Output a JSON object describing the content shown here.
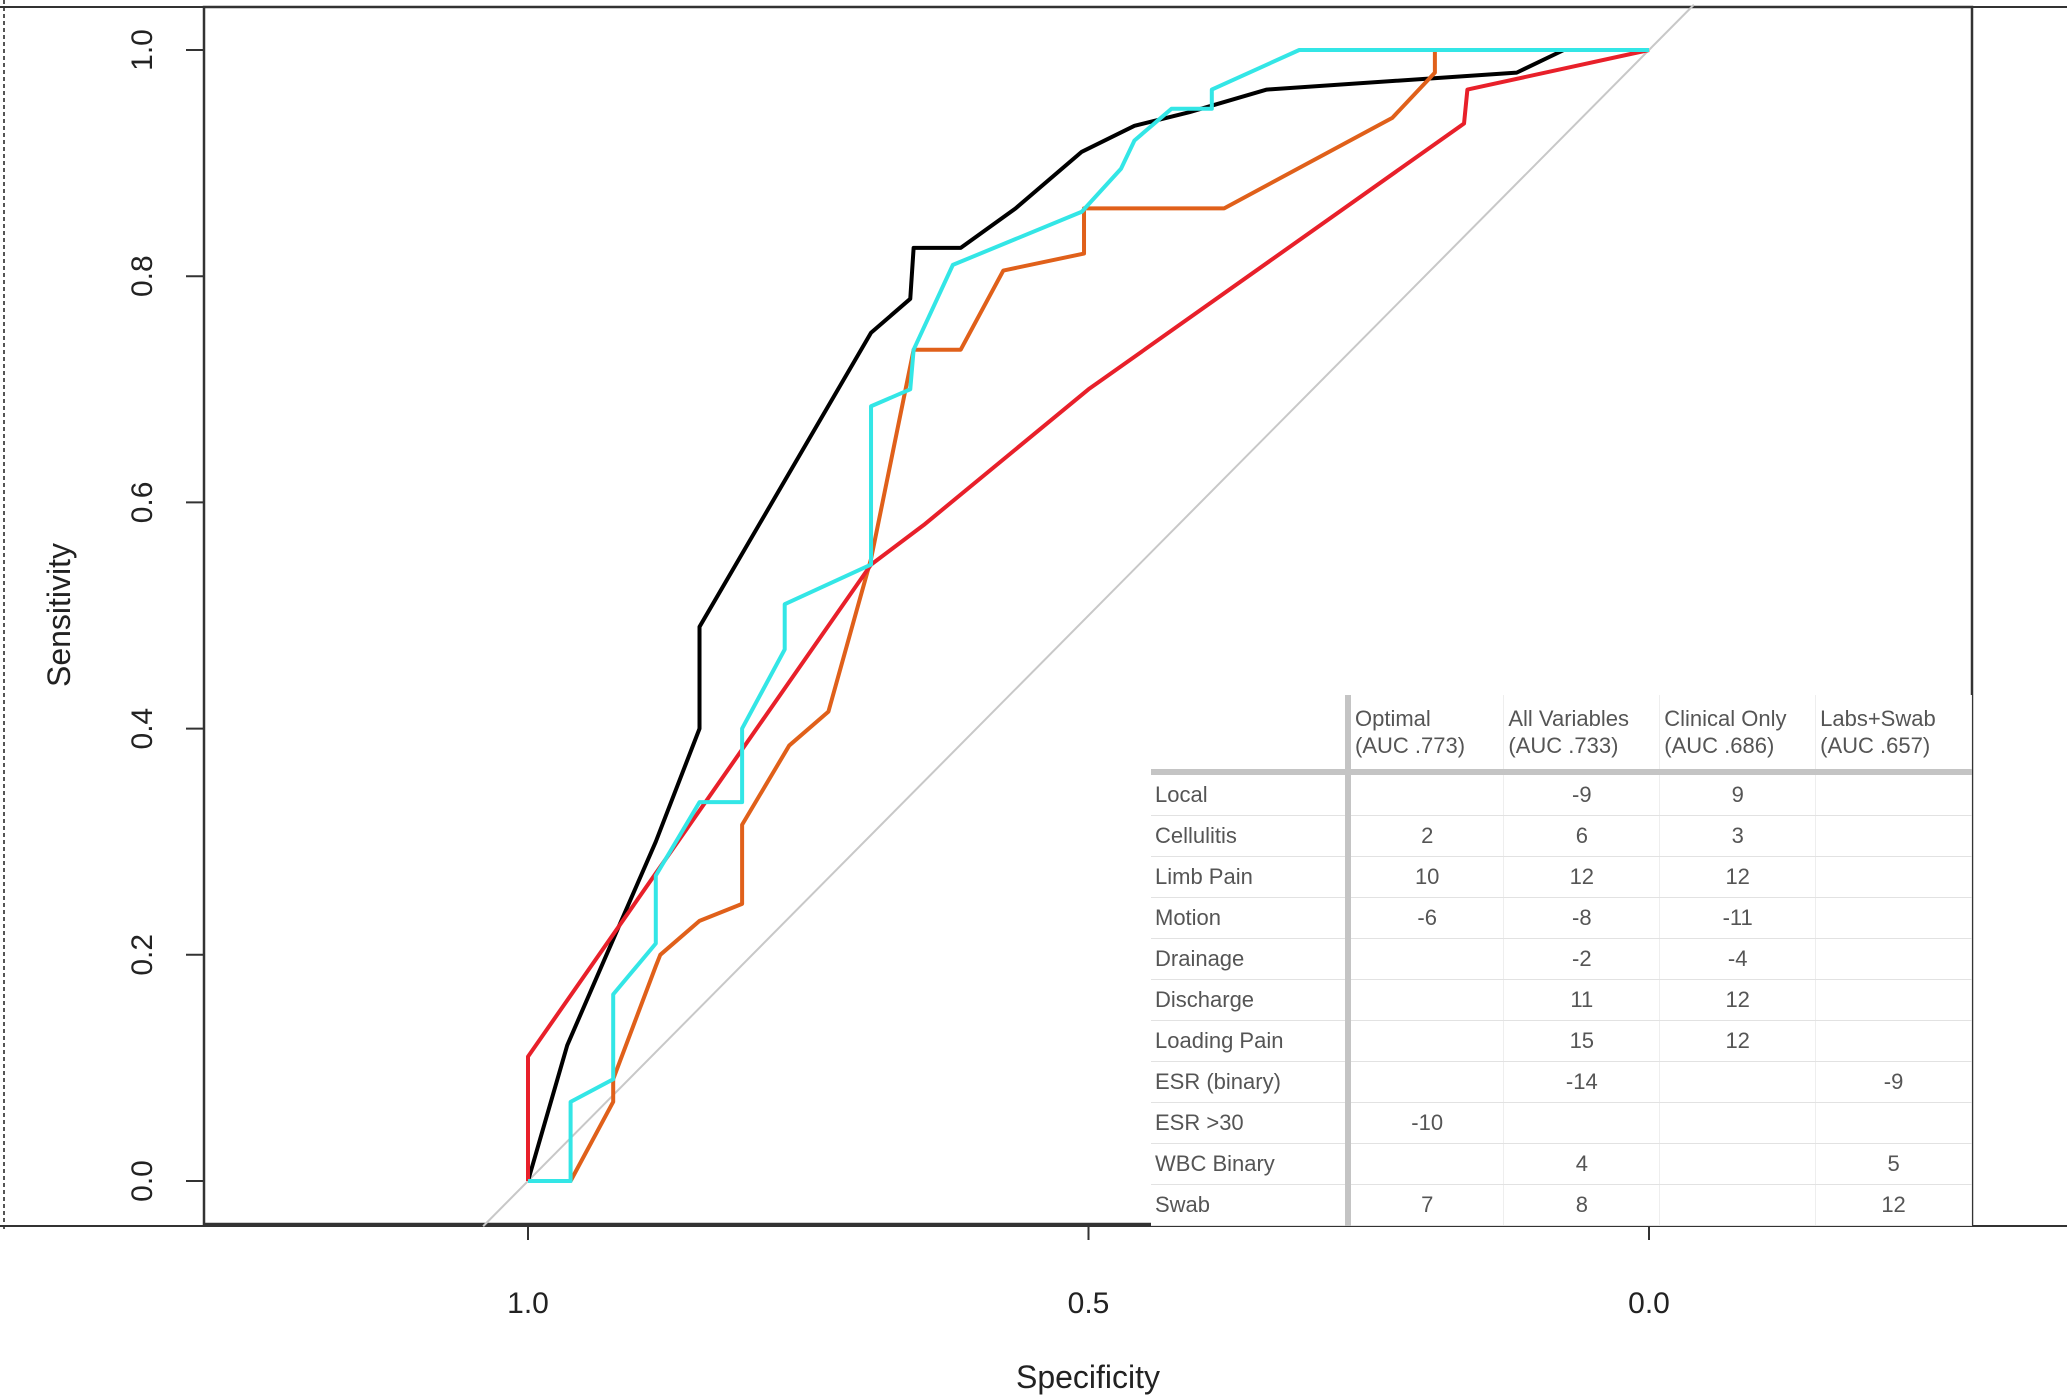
{
  "chart_data": {
    "type": "line",
    "xlabel": "Specificity",
    "ylabel": "Sensitivity",
    "xlim": [
      1.0,
      0.0
    ],
    "ylim": [
      0.0,
      1.0
    ],
    "x_reversed": true,
    "x_ticks": [
      "1.0",
      "0.5",
      "0.0"
    ],
    "y_ticks": [
      "0.0",
      "0.2",
      "0.4",
      "0.6",
      "0.8",
      "1.0"
    ],
    "grid": false,
    "reference_line": {
      "color": "#c8c8c8",
      "points": [
        [
          1.04,
          -0.04
        ],
        [
          -0.04,
          1.04
        ]
      ]
    },
    "series": [
      {
        "color": "#000000",
        "points": [
          [
            1,
            0
          ],
          [
            0.965,
            0.12
          ],
          [
            0.93,
            0.2
          ],
          [
            0.886,
            0.3
          ],
          [
            0.847,
            0.4
          ],
          [
            0.847,
            0.49
          ],
          [
            0.694,
            0.75
          ],
          [
            0.659,
            0.78
          ],
          [
            0.656,
            0.825
          ],
          [
            0.614,
            0.825
          ],
          [
            0.565,
            0.86
          ],
          [
            0.506,
            0.91
          ],
          [
            0.459,
            0.933
          ],
          [
            0.41,
            0.945
          ],
          [
            0.341,
            0.965
          ],
          [
            0.118,
            0.98
          ],
          [
            0.076,
            1.0
          ],
          [
            0,
            1
          ]
        ]
      },
      {
        "color": "#e0601a",
        "points": [
          [
            1,
            0
          ],
          [
            0.962,
            0
          ],
          [
            0.924,
            0.07
          ],
          [
            0.924,
            0.09
          ],
          [
            0.886,
            0.19
          ],
          [
            0.882,
            0.2
          ],
          [
            0.847,
            0.23
          ],
          [
            0.809,
            0.245
          ],
          [
            0.809,
            0.315
          ],
          [
            0.767,
            0.385
          ],
          [
            0.732,
            0.415
          ],
          [
            0.694,
            0.55
          ],
          [
            0.656,
            0.735
          ],
          [
            0.614,
            0.735
          ],
          [
            0.576,
            0.805
          ],
          [
            0.504,
            0.82
          ],
          [
            0.504,
            0.86
          ],
          [
            0.379,
            0.86
          ],
          [
            0.229,
            0.94
          ],
          [
            0.191,
            0.98
          ],
          [
            0.191,
            1.0
          ],
          [
            0,
            1
          ]
        ]
      },
      {
        "color": "#e8202a",
        "points": [
          [
            1,
            0
          ],
          [
            1,
            0.11
          ],
          [
            0.694,
            0.545
          ],
          [
            0.647,
            0.58
          ],
          [
            0.5,
            0.7
          ],
          [
            0.165,
            0.935
          ],
          [
            0.162,
            0.965
          ],
          [
            0,
            1
          ]
        ]
      },
      {
        "color": "#33e6e6",
        "points": [
          [
            1,
            0
          ],
          [
            0.962,
            0
          ],
          [
            0.962,
            0.07
          ],
          [
            0.924,
            0.09
          ],
          [
            0.924,
            0.165
          ],
          [
            0.886,
            0.21
          ],
          [
            0.886,
            0.27
          ],
          [
            0.847,
            0.335
          ],
          [
            0.809,
            0.335
          ],
          [
            0.809,
            0.4
          ],
          [
            0.771,
            0.47
          ],
          [
            0.771,
            0.51
          ],
          [
            0.694,
            0.545
          ],
          [
            0.694,
            0.685
          ],
          [
            0.659,
            0.7
          ],
          [
            0.656,
            0.735
          ],
          [
            0.621,
            0.81
          ],
          [
            0.506,
            0.857
          ],
          [
            0.471,
            0.895
          ],
          [
            0.459,
            0.92
          ],
          [
            0.426,
            0.948
          ],
          [
            0.39,
            0.948
          ],
          [
            0.39,
            0.965
          ],
          [
            0.312,
            1.0
          ],
          [
            0,
            1
          ]
        ]
      }
    ]
  },
  "table": {
    "headers": [
      "",
      "Optimal\n(AUC .773)",
      "All Variables\n(AUC .733)",
      "Clinical Only\n(AUC .686)",
      "Labs+Swab\n(AUC .657)"
    ],
    "rows": [
      [
        "Local",
        "",
        "-9",
        "9",
        ""
      ],
      [
        "Cellulitis",
        "2",
        "6",
        "3",
        ""
      ],
      [
        "Limb Pain",
        "10",
        "12",
        "12",
        ""
      ],
      [
        "Motion",
        "-6",
        "-8",
        "-11",
        ""
      ],
      [
        "Drainage",
        "",
        "-2",
        "-4",
        ""
      ],
      [
        "Discharge",
        "",
        "11",
        "12",
        ""
      ],
      [
        "Loading Pain",
        "",
        "15",
        "12",
        ""
      ],
      [
        "ESR (binary)",
        "",
        "-14",
        "",
        "-9"
      ],
      [
        "ESR >30",
        "-10",
        "",
        "",
        ""
      ],
      [
        "WBC Binary",
        "",
        "4",
        "",
        "5"
      ],
      [
        "Swab",
        "7",
        "8",
        "",
        "12"
      ]
    ]
  }
}
